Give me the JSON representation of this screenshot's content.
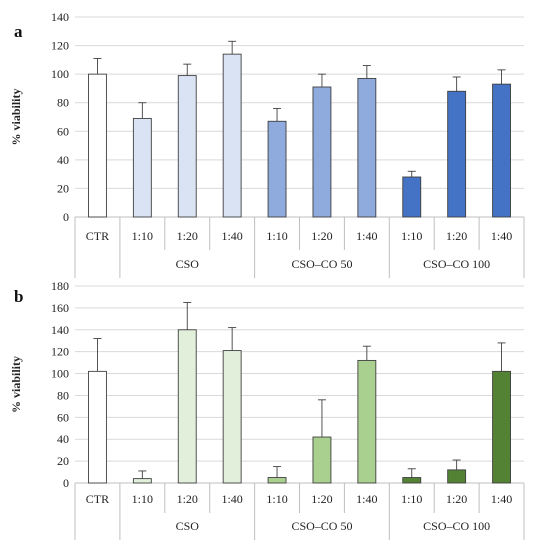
{
  "chart_data": [
    {
      "type": "bar",
      "panel_label": "a",
      "ylabel": "% viability",
      "ylim": [
        0,
        140
      ],
      "yticks": [
        0,
        20,
        40,
        60,
        80,
        100,
        120,
        140
      ],
      "grid": true,
      "groups": [
        {
          "name": "",
          "categories": [
            "CTR"
          ]
        },
        {
          "name": "CSO",
          "categories": [
            "1:10",
            "1:20",
            "1:40"
          ]
        },
        {
          "name": "CSO–CO 50",
          "categories": [
            "1:10",
            "1:20",
            "1:40"
          ]
        },
        {
          "name": "CSO–CO 100",
          "categories": [
            "1:10",
            "1:20",
            "1:40"
          ]
        }
      ],
      "values": [
        100,
        69,
        99,
        114,
        67,
        91,
        97,
        28,
        88,
        93
      ],
      "errors": [
        11,
        11,
        8,
        9,
        9,
        9,
        9,
        4,
        10,
        10
      ],
      "colors": [
        "#ffffff",
        "#dae3f3",
        "#dae3f3",
        "#dae3f3",
        "#8faadc",
        "#8faadc",
        "#8faadc",
        "#4472c4",
        "#4472c4",
        "#4472c4"
      ]
    },
    {
      "type": "bar",
      "panel_label": "b",
      "ylabel": "% viability",
      "ylim": [
        0,
        180
      ],
      "yticks": [
        0,
        20,
        40,
        60,
        80,
        100,
        120,
        140,
        160,
        180
      ],
      "grid": true,
      "groups": [
        {
          "name": "",
          "categories": [
            "CTR"
          ]
        },
        {
          "name": "CSO",
          "categories": [
            "1:10",
            "1:20",
            "1:40"
          ]
        },
        {
          "name": "CSO–CO 50",
          "categories": [
            "1:10",
            "1:20",
            "1:40"
          ]
        },
        {
          "name": "CSO–CO 100",
          "categories": [
            "1:10",
            "1:20",
            "1:40"
          ]
        }
      ],
      "values": [
        102,
        4,
        140,
        121,
        5,
        42,
        112,
        5,
        12,
        102
      ],
      "errors": [
        30,
        7,
        25,
        21,
        10,
        34,
        13,
        8,
        9,
        26
      ],
      "colors": [
        "#ffffff",
        "#e2efda",
        "#e2efda",
        "#e2efda",
        "#a9d08e",
        "#a9d08e",
        "#a9d08e",
        "#548235",
        "#548235",
        "#548235"
      ]
    }
  ]
}
